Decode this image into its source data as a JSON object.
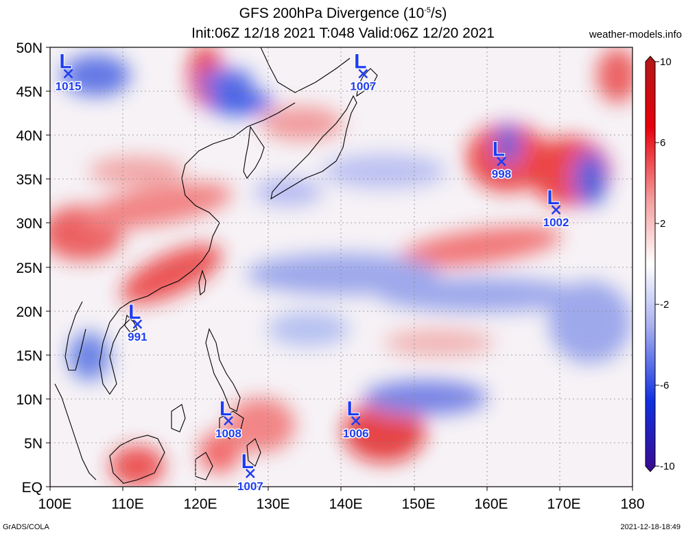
{
  "title": {
    "line1_prefix": "GFS 200hPa Divergence (10",
    "line1_exp": "-5",
    "line1_suffix": "/s)",
    "line2": "Init:06Z 12/18 2021 T:048 Valid:06Z 12/20 2021"
  },
  "website": "weather-models.info",
  "footer": {
    "left": "GrADS/COLA",
    "right": "2021-12-18-18:49"
  },
  "map": {
    "lon_labels": [
      "100E",
      "110E",
      "120E",
      "130E",
      "140E",
      "150E",
      "160E",
      "170E",
      "180"
    ],
    "lat_labels": [
      "EQ",
      "5N",
      "10N",
      "15N",
      "20N",
      "25N",
      "30N",
      "35N",
      "40N",
      "45N",
      "50N"
    ],
    "lon_range": [
      100,
      180
    ],
    "lat_range": [
      0,
      50
    ],
    "grid": true
  },
  "colorbar": {
    "labels": [
      "10",
      "6",
      "2",
      "-2",
      "-6",
      "-10"
    ],
    "range": [
      -10,
      10
    ],
    "colors": {
      "positive": "#e8000b",
      "negative": "#1030e0",
      "neutral": "#ffffff"
    }
  },
  "lows": [
    {
      "label": "L",
      "pressure": "1015",
      "lon": 102.5,
      "lat": 47
    },
    {
      "label": "L",
      "pressure": "1007",
      "lon": 143,
      "lat": 47
    },
    {
      "label": "L",
      "pressure": "998",
      "lon": 162,
      "lat": 37
    },
    {
      "label": "L",
      "pressure": "1002",
      "lon": 169.5,
      "lat": 31.5
    },
    {
      "label": "L",
      "pressure": "991",
      "lon": 112,
      "lat": 18.5
    },
    {
      "label": "L",
      "pressure": "1008",
      "lon": 124.5,
      "lat": 7.5
    },
    {
      "label": "L",
      "pressure": "1006",
      "lon": 142,
      "lat": 7.5
    },
    {
      "label": "L",
      "pressure": "1007",
      "lon": 127.5,
      "lat": 1.5
    }
  ]
}
